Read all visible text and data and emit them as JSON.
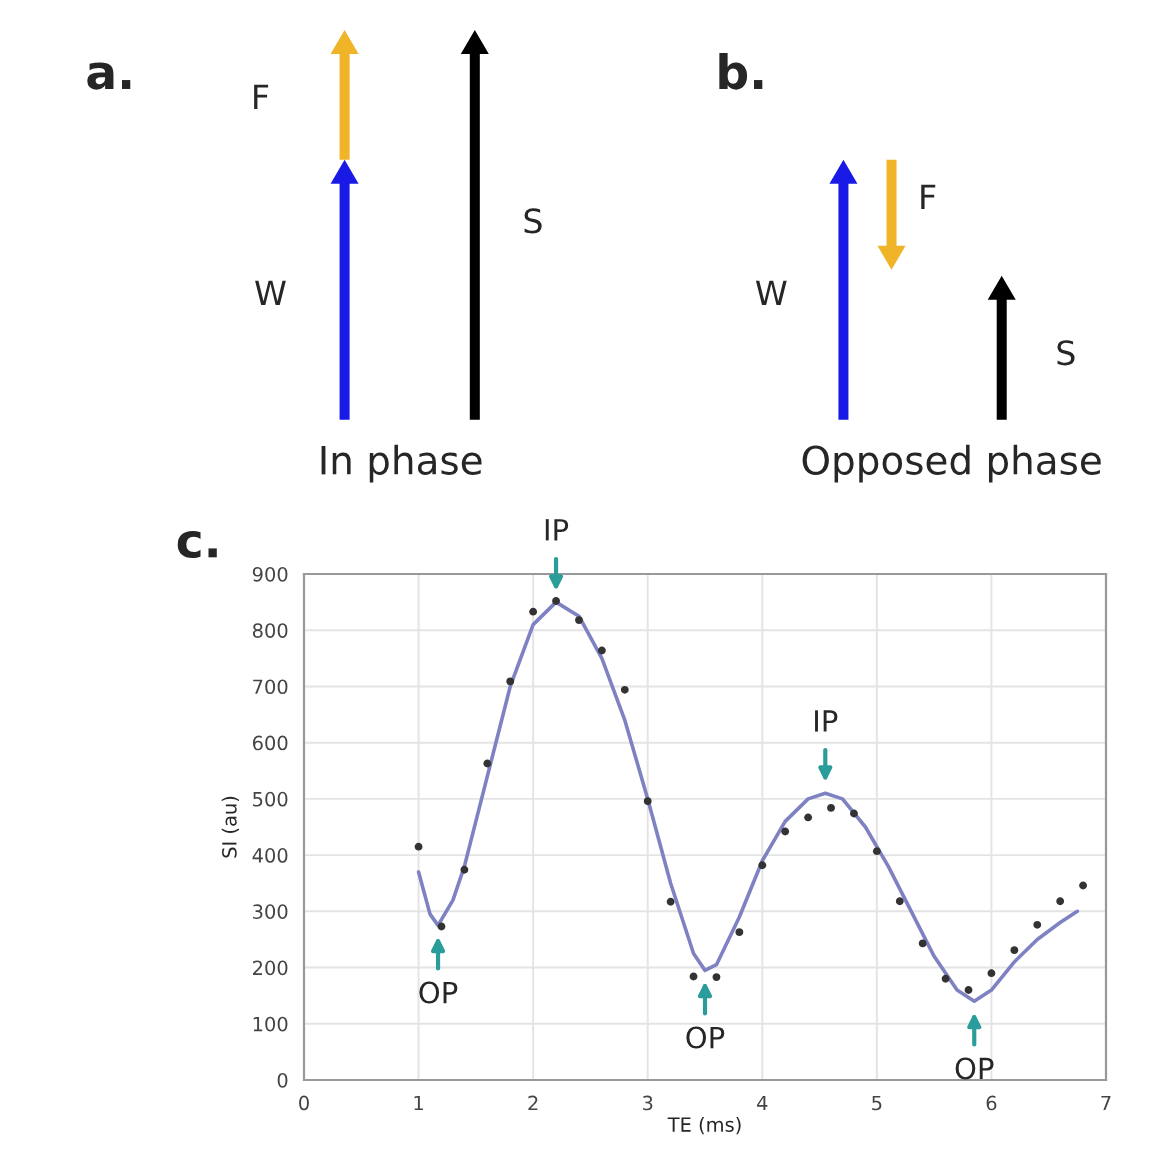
{
  "chart_data": [
    {
      "type": "other",
      "title": "a.",
      "annotations": [
        "F",
        "W",
        "S",
        "In phase"
      ]
    },
    {
      "type": "other",
      "title": "b.",
      "annotations": [
        "W",
        "F",
        "S",
        "Opposed phase"
      ]
    },
    {
      "type": "scatter",
      "title": "c.",
      "xlabel": "TE (ms)",
      "ylabel": "SI (au)",
      "xlim": [
        0,
        7
      ],
      "xticks": [
        0,
        1,
        2,
        3,
        4,
        5,
        6,
        7
      ],
      "ylim": [
        0,
        900
      ],
      "yticks": [
        0,
        100,
        200,
        300,
        400,
        500,
        600,
        700,
        800,
        900
      ],
      "grid": true,
      "series": [
        {
          "type": "scatter",
          "color": "#333333",
          "marker": "circle",
          "x": [
            1.0,
            1.2,
            1.4,
            1.6,
            1.8,
            2.0,
            2.2,
            2.4,
            2.6,
            2.8,
            3.0,
            3.2,
            3.4,
            3.6,
            3.8,
            4.0,
            4.2,
            4.4,
            4.6,
            4.8,
            5.0,
            5.2,
            5.4,
            5.6,
            5.8,
            6.0,
            6.2,
            6.4,
            6.6,
            6.8
          ],
          "values": [
            415,
            273,
            374,
            563,
            709,
            833,
            852,
            818,
            764,
            694,
            496,
            317,
            184,
            183,
            263,
            382,
            442,
            467,
            484,
            474,
            407,
            318,
            243,
            180,
            160,
            190,
            231,
            276,
            318,
            346
          ]
        },
        {
          "type": "line",
          "color": "#7f82c2",
          "marker": "none",
          "x": [
            1.0,
            1.1,
            1.17,
            1.3,
            1.4,
            1.6,
            1.8,
            2.0,
            2.2,
            2.4,
            2.6,
            2.8,
            3.0,
            3.2,
            3.4,
            3.5,
            3.6,
            3.8,
            4.0,
            4.2,
            4.4,
            4.55,
            4.7,
            4.9,
            5.1,
            5.3,
            5.5,
            5.7,
            5.85,
            6.0,
            6.2,
            6.4,
            6.6,
            6.75
          ],
          "values": [
            370,
            295,
            275,
            320,
            380,
            540,
            700,
            810,
            850,
            825,
            750,
            640,
            500,
            350,
            225,
            195,
            205,
            290,
            390,
            460,
            500,
            510,
            500,
            450,
            380,
            300,
            220,
            160,
            140,
            160,
            210,
            250,
            280,
            300
          ]
        }
      ],
      "annotations": [
        {
          "text": "IP",
          "x": 2.2,
          "y": 850
        },
        {
          "text": "OP",
          "x": 1.17,
          "y": 275
        },
        {
          "text": "OP",
          "x": 3.5,
          "y": 195
        },
        {
          "text": "IP",
          "x": 4.55,
          "y": 510
        },
        {
          "text": "OP",
          "x": 5.85,
          "y": 140
        }
      ]
    }
  ]
}
